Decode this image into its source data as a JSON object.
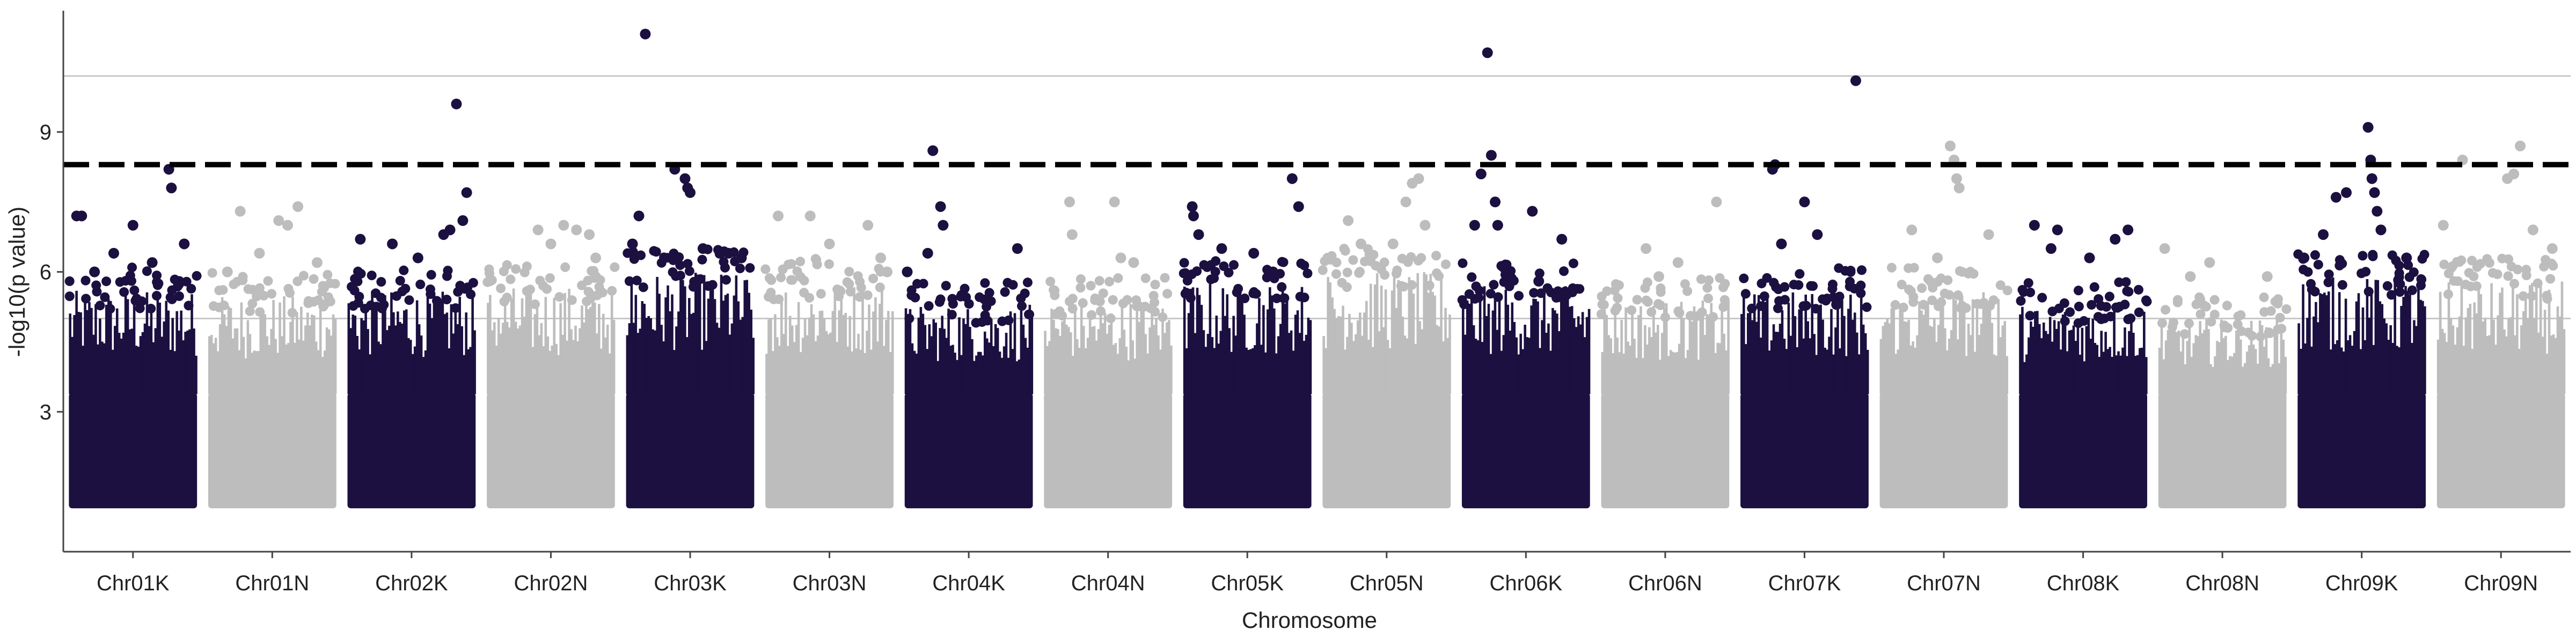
{
  "chart_data": {
    "type": "scatter",
    "title": "",
    "xlabel": "Chromosome",
    "ylabel": "-log10(p value)",
    "ylim": [
      0.0,
      11.6
    ],
    "yticks": [
      3,
      6,
      9
    ],
    "grid": false,
    "legend": "none",
    "thresholds": {
      "dashed_line": 8.3,
      "upper_solid_line": 10.2,
      "lower_solid_line": 5.0
    },
    "point_floor": 1.0,
    "colors": {
      "odd_chromosome": "#1b1040",
      "even_chromosome": "#bdbdbd",
      "threshold_line": "#000000",
      "reference_line": "#c8c8c8",
      "axis": "#444444"
    },
    "categories": [
      "Chr01K",
      "Chr01N",
      "Chr02K",
      "Chr02N",
      "Chr03K",
      "Chr03N",
      "Chr04K",
      "Chr04N",
      "Chr05K",
      "Chr05N",
      "Chr06K",
      "Chr06N",
      "Chr07K",
      "Chr07N",
      "Chr08K",
      "Chr08N",
      "Chr09K",
      "Chr09N"
    ],
    "series": [
      {
        "values": [
          {
            "chr": "Chr01K",
            "bulk_top": 5.6,
            "points": [
              [
                0.06,
                7.2
              ],
              [
                0.1,
                7.2
              ],
              [
                0.35,
                6.4
              ],
              [
                0.5,
                7.0
              ],
              [
                0.78,
                8.2
              ],
              [
                0.8,
                7.8
              ],
              [
                0.9,
                6.6
              ],
              [
                0.2,
                6.0
              ],
              [
                0.65,
                6.2
              ]
            ]
          },
          {
            "chr": "Chr01N",
            "bulk_top": 5.5,
            "points": [
              [
                0.25,
                7.3
              ],
              [
                0.55,
                7.1
              ],
              [
                0.62,
                7.0
              ],
              [
                0.7,
                7.4
              ],
              [
                0.4,
                6.4
              ],
              [
                0.85,
                6.2
              ],
              [
                0.15,
                6.0
              ]
            ]
          },
          {
            "chr": "Chr02K",
            "bulk_top": 5.6,
            "points": [
              [
                0.1,
                6.7
              ],
              [
                0.35,
                6.6
              ],
              [
                0.55,
                6.3
              ],
              [
                0.75,
                6.8
              ],
              [
                0.85,
                9.6
              ],
              [
                0.93,
                7.7
              ],
              [
                0.9,
                7.1
              ],
              [
                0.8,
                6.9
              ]
            ]
          },
          {
            "chr": "Chr02N",
            "bulk_top": 5.7,
            "points": [
              [
                0.4,
                6.9
              ],
              [
                0.5,
                6.6
              ],
              [
                0.6,
                7.0
              ],
              [
                0.7,
                6.9
              ],
              [
                0.8,
                6.8
              ],
              [
                0.85,
                6.3
              ]
            ]
          },
          {
            "chr": "Chr03K",
            "bulk_top": 6.0,
            "points": [
              [
                0.05,
                6.6
              ],
              [
                0.1,
                7.2
              ],
              [
                0.15,
                11.1
              ],
              [
                0.38,
                8.2
              ],
              [
                0.46,
                8.0
              ],
              [
                0.48,
                7.8
              ],
              [
                0.5,
                7.7
              ],
              [
                0.6,
                6.5
              ],
              [
                0.8,
                6.4
              ],
              [
                0.9,
                6.3
              ]
            ]
          },
          {
            "chr": "Chr03N",
            "bulk_top": 5.8,
            "points": [
              [
                0.1,
                7.2
              ],
              [
                0.35,
                7.2
              ],
              [
                0.5,
                6.6
              ],
              [
                0.8,
                7.0
              ],
              [
                0.9,
                6.3
              ],
              [
                0.95,
                6.0
              ]
            ]
          },
          {
            "chr": "Chr04K",
            "bulk_top": 5.3,
            "points": [
              [
                0.02,
                6.0
              ],
              [
                0.18,
                6.4
              ],
              [
                0.22,
                8.6
              ],
              [
                0.28,
                7.4
              ],
              [
                0.3,
                7.0
              ],
              [
                0.88,
                6.5
              ]
            ]
          },
          {
            "chr": "Chr04N",
            "bulk_top": 5.4,
            "points": [
              [
                0.2,
                7.5
              ],
              [
                0.22,
                6.8
              ],
              [
                0.55,
                7.5
              ],
              [
                0.6,
                6.3
              ],
              [
                0.7,
                6.2
              ]
            ]
          },
          {
            "chr": "Chr05K",
            "bulk_top": 5.8,
            "points": [
              [
                0.07,
                7.4
              ],
              [
                0.08,
                7.2
              ],
              [
                0.12,
                6.8
              ],
              [
                0.3,
                6.5
              ],
              [
                0.55,
                6.4
              ],
              [
                0.85,
                8.0
              ],
              [
                0.9,
                7.4
              ],
              [
                0.7,
                6.0
              ]
            ]
          },
          {
            "chr": "Chr05N",
            "bulk_top": 6.0,
            "points": [
              [
                0.2,
                7.1
              ],
              [
                0.3,
                6.6
              ],
              [
                0.65,
                7.5
              ],
              [
                0.7,
                7.9
              ],
              [
                0.75,
                8.0
              ],
              [
                0.8,
                7.0
              ],
              [
                0.55,
                6.6
              ]
            ]
          },
          {
            "chr": "Chr06K",
            "bulk_top": 5.7,
            "points": [
              [
                0.1,
                7.0
              ],
              [
                0.15,
                8.1
              ],
              [
                0.2,
                10.7
              ],
              [
                0.23,
                8.5
              ],
              [
                0.26,
                7.5
              ],
              [
                0.28,
                7.0
              ],
              [
                0.55,
                7.3
              ],
              [
                0.78,
                6.7
              ],
              [
                0.6,
                5.8
              ]
            ]
          },
          {
            "chr": "Chr06N",
            "bulk_top": 5.4,
            "points": [
              [
                0.35,
                6.5
              ],
              [
                0.6,
                6.2
              ],
              [
                0.9,
                7.5
              ],
              [
                0.45,
                5.9
              ]
            ]
          },
          {
            "chr": "Chr07K",
            "bulk_top": 5.6,
            "points": [
              [
                0.25,
                8.2
              ],
              [
                0.27,
                8.3
              ],
              [
                0.32,
                6.6
              ],
              [
                0.5,
                7.5
              ],
              [
                0.6,
                6.8
              ],
              [
                0.9,
                10.1
              ],
              [
                0.75,
                5.3
              ]
            ]
          },
          {
            "chr": "Chr07N",
            "bulk_top": 5.6,
            "points": [
              [
                0.25,
                6.9
              ],
              [
                0.55,
                8.7
              ],
              [
                0.58,
                8.4
              ],
              [
                0.6,
                8.0
              ],
              [
                0.62,
                7.8
              ],
              [
                0.85,
                6.8
              ],
              [
                0.45,
                6.3
              ]
            ]
          },
          {
            "chr": "Chr08K",
            "bulk_top": 5.3,
            "points": [
              [
                0.12,
                7.0
              ],
              [
                0.25,
                6.5
              ],
              [
                0.3,
                6.9
              ],
              [
                0.55,
                6.3
              ],
              [
                0.75,
                6.7
              ],
              [
                0.85,
                6.9
              ]
            ]
          },
          {
            "chr": "Chr08N",
            "bulk_top": 5.0,
            "points": [
              [
                0.05,
                6.5
              ],
              [
                0.25,
                5.9
              ],
              [
                0.4,
                6.2
              ],
              [
                0.85,
                5.9
              ]
            ]
          },
          {
            "chr": "Chr09K",
            "bulk_top": 5.9,
            "points": [
              [
                0.05,
                6.3
              ],
              [
                0.2,
                6.8
              ],
              [
                0.3,
                7.6
              ],
              [
                0.38,
                7.7
              ],
              [
                0.55,
                9.1
              ],
              [
                0.57,
                8.4
              ],
              [
                0.58,
                8.0
              ],
              [
                0.6,
                7.7
              ],
              [
                0.62,
                7.3
              ],
              [
                0.65,
                6.9
              ],
              [
                0.85,
                6.3
              ]
            ]
          },
          {
            "chr": "Chr09N",
            "bulk_top": 5.8,
            "points": [
              [
                0.05,
                7.0
              ],
              [
                0.2,
                8.4
              ],
              [
                0.55,
                8.0
              ],
              [
                0.6,
                8.1
              ],
              [
                0.65,
                8.7
              ],
              [
                0.75,
                6.9
              ],
              [
                0.9,
                6.5
              ]
            ]
          }
        ]
      }
    ]
  }
}
